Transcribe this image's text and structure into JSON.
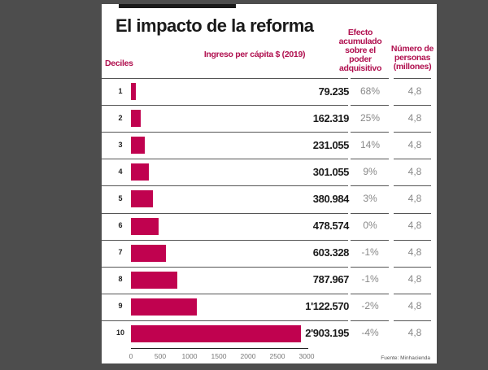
{
  "title": "El impacto de la reforma",
  "headers": {
    "deciles": "Deciles",
    "ingreso": "Ingreso per cápita $ (2019)",
    "efecto": "Efecto acumulado sobre el poder adquisitivo",
    "personas": "Número de personas (millones)"
  },
  "source": "Fuente: Minhacienda",
  "colors": {
    "bar": "#c0024f",
    "header": "#b0104f"
  },
  "chart_data": {
    "type": "bar",
    "orientation": "horizontal",
    "categories": [
      "1",
      "2",
      "3",
      "4",
      "5",
      "6",
      "7",
      "8",
      "9",
      "10"
    ],
    "values": [
      79.235,
      162.319,
      231.055,
      301.055,
      380.984,
      478.574,
      603.328,
      787.967,
      1122.57,
      2903.195
    ],
    "value_labels": [
      "79.235",
      "162.319",
      "231.055",
      "301.055",
      "380.984",
      "478.574",
      "603.328",
      "787.967",
      "1'122.570",
      "2'903.195"
    ],
    "efecto": [
      "68%",
      "25%",
      "14%",
      "9%",
      "3%",
      "0%",
      "-1%",
      "-1%",
      "-2%",
      "-4%"
    ],
    "personas": [
      "4,8",
      "4,8",
      "4,8",
      "4,8",
      "4,8",
      "4,8",
      "4,8",
      "4,8",
      "4,8",
      "4,8"
    ],
    "xlim": [
      0,
      3000
    ],
    "xticks": [
      "0",
      "500",
      "1000",
      "1500",
      "2000",
      "2500",
      "3000"
    ],
    "grid": false
  }
}
